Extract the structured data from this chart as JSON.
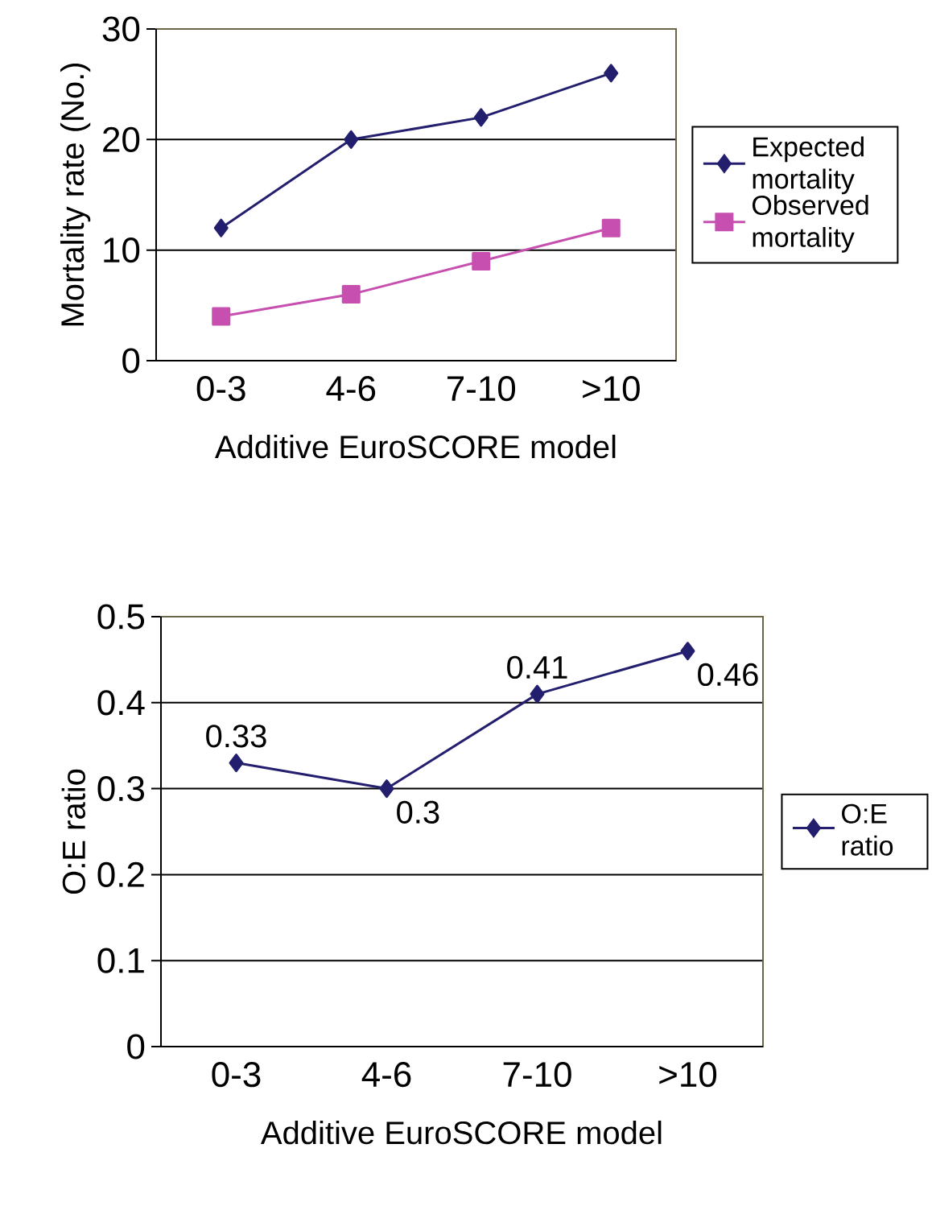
{
  "chart_data": [
    {
      "type": "line",
      "ylabel": "Mortality rate (No.)",
      "xlabel": "Additive EuroSCORE model",
      "categories": [
        "0-3",
        "4-6",
        "7-10",
        ">10"
      ],
      "ylim": [
        0,
        30
      ],
      "yticks": [
        0,
        10,
        20,
        30
      ],
      "grid": "y",
      "legend": "right",
      "series": [
        {
          "name": "Expected mortality",
          "color": "#231f6e",
          "marker": "diamond",
          "values": [
            12,
            20,
            22,
            26
          ]
        },
        {
          "name": "Observed mortality",
          "color": "#c64fb0",
          "marker": "square",
          "values": [
            4,
            6,
            9,
            12
          ]
        }
      ]
    },
    {
      "type": "line",
      "ylabel": "O:E ratio",
      "xlabel": "Additive EuroSCORE model",
      "categories": [
        "0-3",
        "4-6",
        "7-10",
        ">10"
      ],
      "ylim": [
        0,
        0.5
      ],
      "yticks": [
        0,
        0.1,
        0.2,
        0.3,
        0.4,
        0.5
      ],
      "grid": "y",
      "legend": "right",
      "data_labels": true,
      "series": [
        {
          "name": "O:E ratio",
          "color": "#231f6e",
          "marker": "diamond",
          "values": [
            0.33,
            0.3,
            0.41,
            0.46
          ]
        }
      ]
    }
  ]
}
